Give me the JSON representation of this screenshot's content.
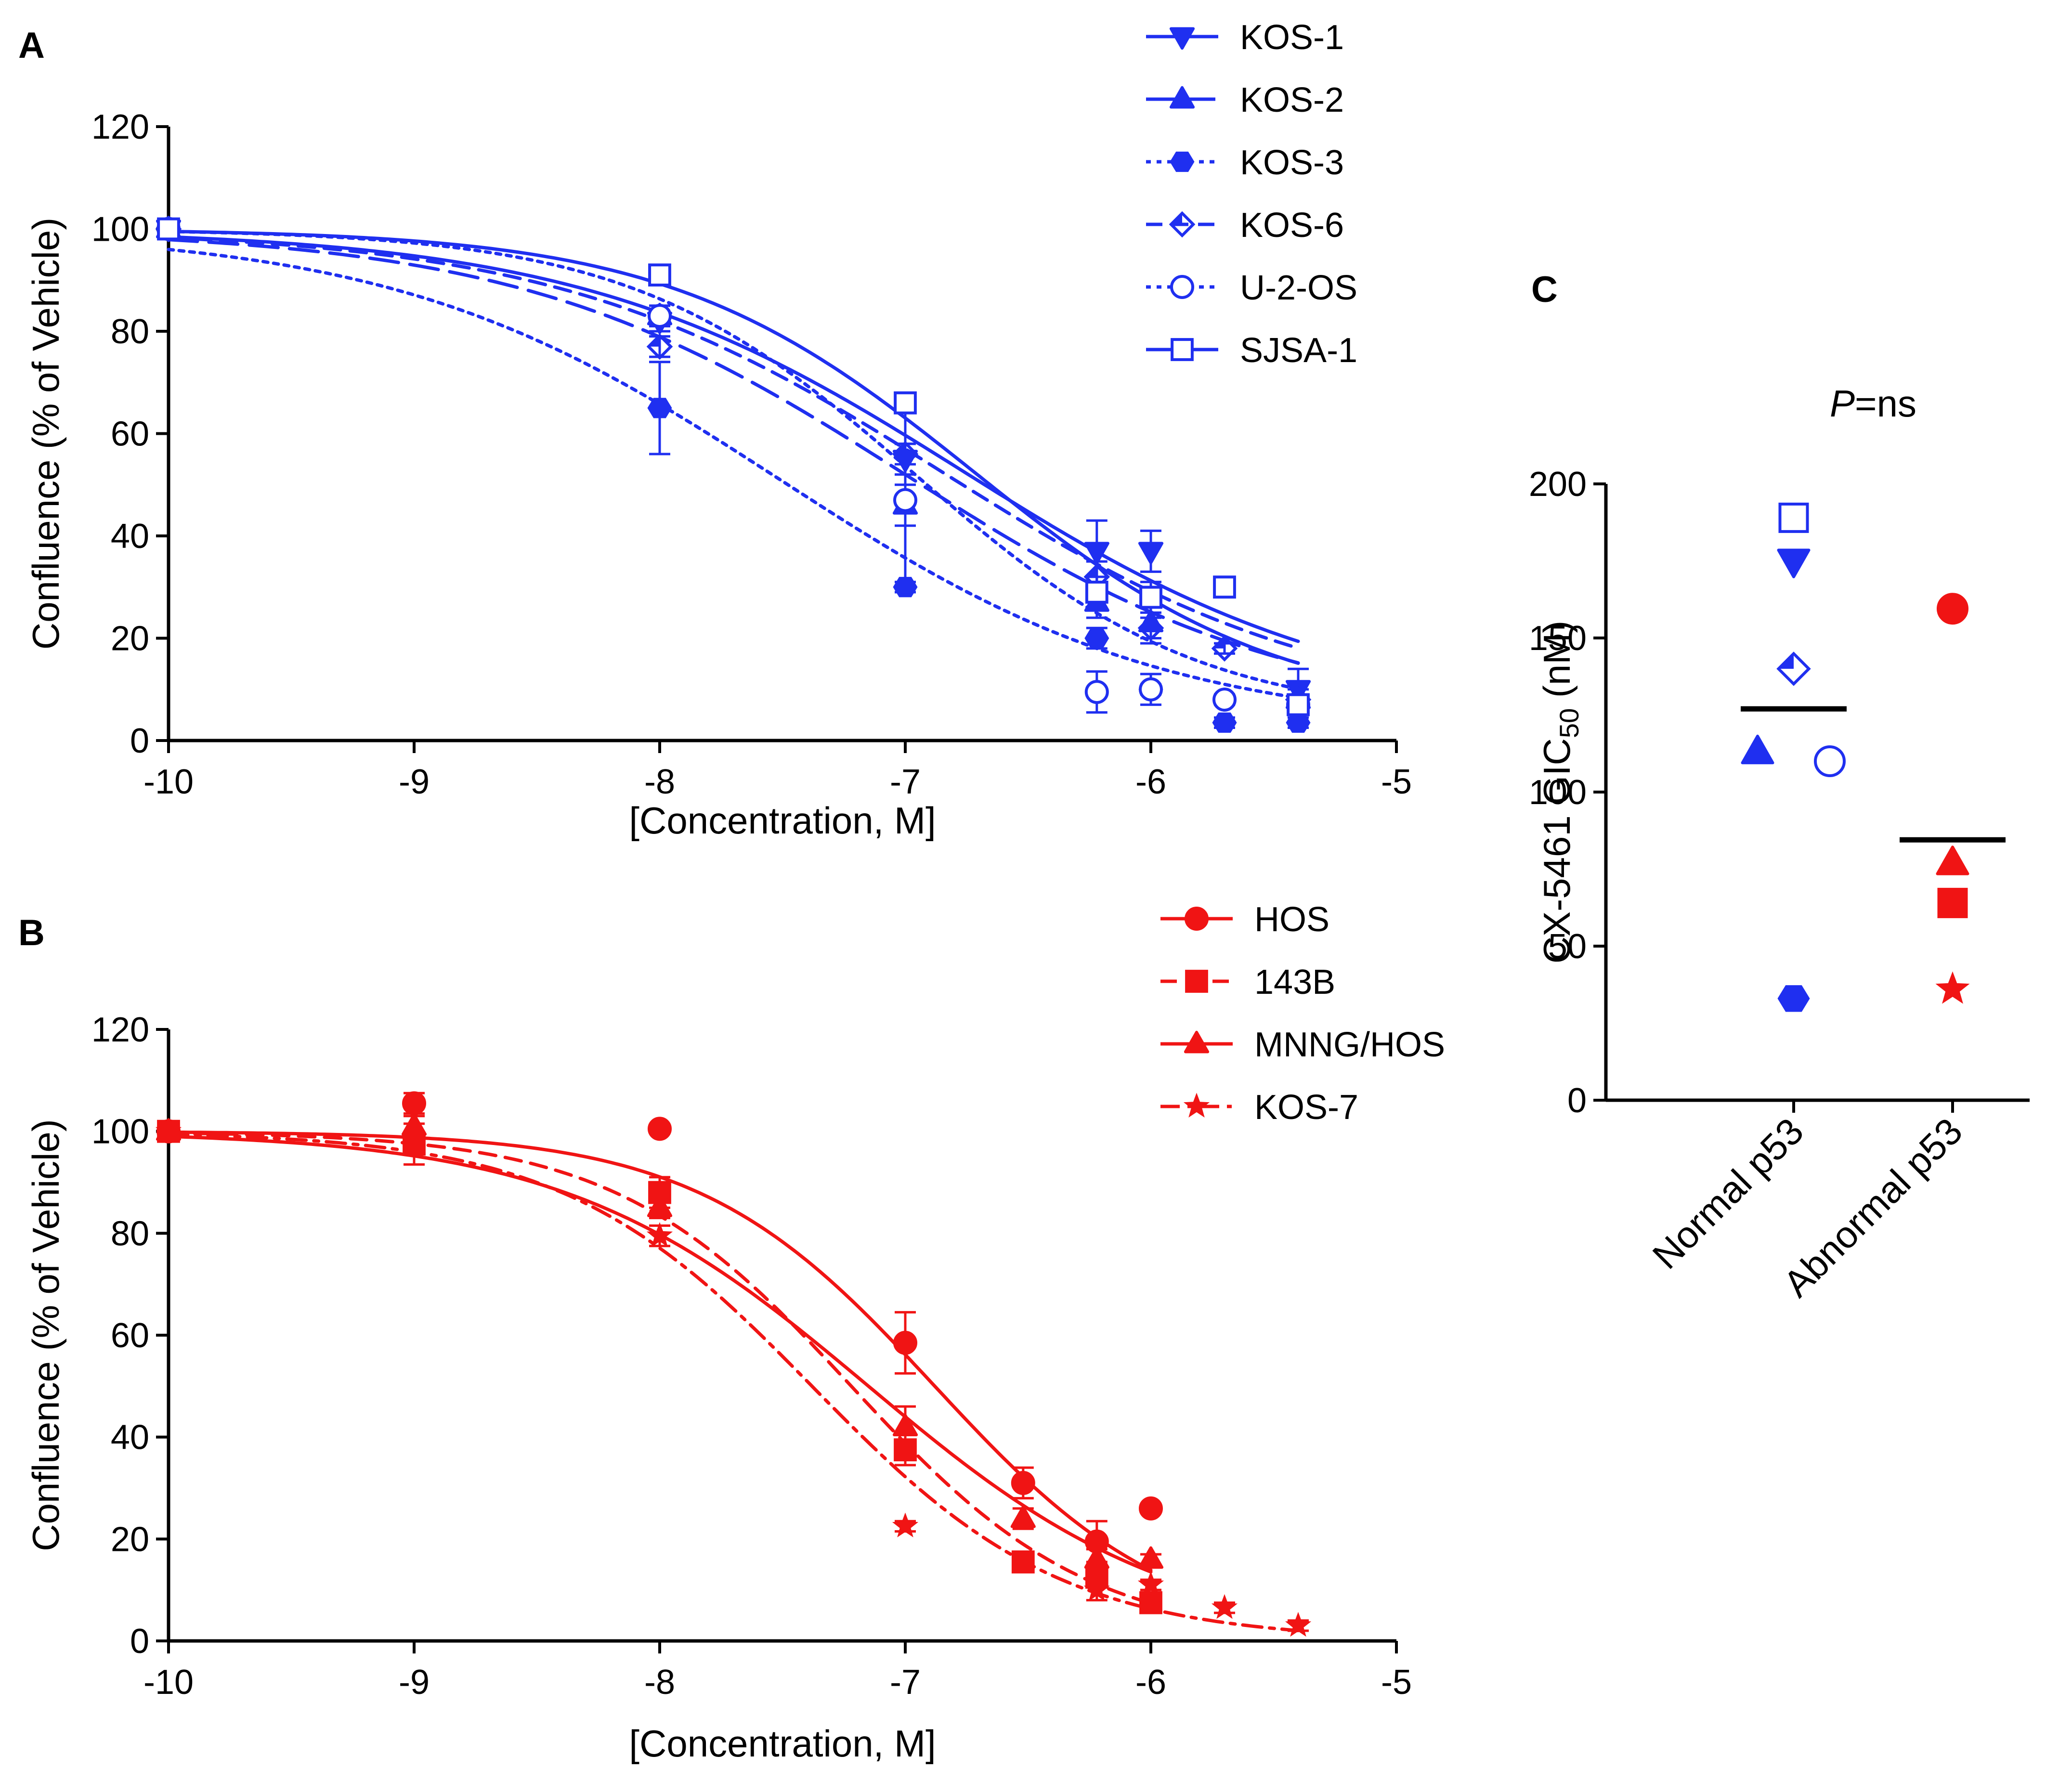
{
  "figure": {
    "panels": [
      {
        "letter": "A"
      },
      {
        "letter": "B"
      },
      {
        "letter": "C"
      }
    ]
  },
  "colors": {
    "blue": "#1f2ff0",
    "red": "#f01414",
    "black": "#000000"
  },
  "chart_data": [
    {
      "panel": "A",
      "type": "line",
      "xlabel": "[Concentration, M]",
      "ylabel": "Confluence (% of Vehicle)",
      "xlim": [
        -10,
        -5
      ],
      "ylim": [
        0,
        120
      ],
      "xticks": [
        -10,
        -9,
        -8,
        -7,
        -6,
        -5
      ],
      "yticks": [
        0,
        20,
        40,
        60,
        80,
        100,
        120
      ],
      "x_tick_labels": [
        "-10",
        "-9",
        "-8",
        "-7",
        "-6",
        "-5"
      ],
      "y_tick_labels": [
        "0",
        "20",
        "40",
        "60",
        "80",
        "100",
        "120"
      ],
      "legend_position": "top-right",
      "series": [
        {
          "name": "KOS-1",
          "marker": "triangle-down",
          "filled": true,
          "dash": "solid",
          "x": [
            -10,
            -8,
            -7,
            -6.22,
            -6,
            -5.4
          ],
          "y": [
            100,
            82,
            55,
            37,
            37,
            10
          ],
          "err": [
            0,
            2,
            3,
            6,
            4,
            4
          ],
          "fit": {
            "top": 100,
            "bottom": 5,
            "logic50": -6.76,
            "hill": 0.55
          }
        },
        {
          "name": "KOS-2",
          "marker": "triangle-up",
          "filled": true,
          "dash": "longdash",
          "x": [
            -10,
            -8,
            -7,
            -6.22,
            -6,
            -5.4
          ],
          "y": [
            100,
            83,
            46,
            27,
            23,
            8
          ],
          "err": [
            0,
            2,
            4,
            3,
            4,
            2
          ],
          "fit": {
            "top": 100,
            "bottom": 4,
            "logic50": -7.0,
            "hill": 0.55
          }
        },
        {
          "name": "KOS-3",
          "marker": "hexagon",
          "filled": true,
          "dash": "dotted",
          "x": [
            -10,
            -8,
            -7,
            -6.22,
            -6,
            -5.7,
            -5.4
          ],
          "y": [
            100,
            65,
            30,
            20,
            10,
            3.5,
            3.5
          ],
          "err": [
            0,
            9,
            1,
            2,
            1,
            1,
            1
          ],
          "fit": {
            "top": 100,
            "bottom": 2,
            "logic50": -7.51,
            "hill": 0.55
          }
        },
        {
          "name": "KOS-6",
          "marker": "diamond",
          "filled": "half",
          "dash": "dash",
          "x": [
            -10,
            -8,
            -7,
            -6.22,
            -6,
            -5.7,
            -5.4
          ],
          "y": [
            100,
            77,
            56,
            32,
            22,
            18,
            8
          ],
          "err": [
            0,
            2,
            2,
            3,
            2,
            1,
            1
          ],
          "fit": {
            "top": 100,
            "bottom": 5,
            "logic50": -6.85,
            "hill": 0.55
          }
        },
        {
          "name": "U-2-OS",
          "marker": "circle",
          "filled": false,
          "dash": "dotted",
          "x": [
            -10,
            -8,
            -7,
            -6.22,
            -6,
            -5.7,
            -5.4
          ],
          "y": [
            100,
            83,
            47,
            9.5,
            10,
            8,
            7
          ],
          "err": [
            0,
            2,
            18,
            4,
            3,
            1,
            1
          ],
          "fit": {
            "top": 100,
            "bottom": 4,
            "logic50": -6.96,
            "hill": 0.75
          }
        },
        {
          "name": "SJSA-1",
          "marker": "square",
          "filled": false,
          "dash": "solid",
          "x": [
            -10,
            -8,
            -7,
            -6.22,
            -6,
            -5.7,
            -5.4
          ],
          "y": [
            100,
            91,
            66,
            29,
            28,
            30,
            7
          ],
          "err": [
            0,
            1,
            2,
            3,
            3,
            1,
            1
          ],
          "fit": {
            "top": 100,
            "bottom": 5,
            "logic50": -6.72,
            "hill": 0.7
          }
        }
      ]
    },
    {
      "panel": "B",
      "type": "line",
      "xlabel": "[Concentration, M]",
      "ylabel": "Confluence (% of Vehicle)",
      "xlim": [
        -10,
        -5
      ],
      "ylim": [
        0,
        120
      ],
      "xticks": [
        -10,
        -9,
        -8,
        -7,
        -6,
        -5
      ],
      "yticks": [
        0,
        20,
        40,
        60,
        80,
        100,
        120
      ],
      "x_tick_labels": [
        "-10",
        "-9",
        "-8",
        "-7",
        "-6",
        "-5"
      ],
      "y_tick_labels": [
        "0",
        "20",
        "40",
        "60",
        "80",
        "100",
        "120"
      ],
      "legend_position": "top-right",
      "series": [
        {
          "name": "HOS",
          "marker": "circle",
          "filled": true,
          "dash": "solid",
          "x": [
            -10,
            -9,
            -8,
            -7,
            -6.52,
            -6.22,
            -6
          ],
          "y": [
            100,
            105.5,
            100.5,
            58.5,
            31,
            19.5,
            26
          ],
          "err": [
            0,
            2,
            0,
            6,
            3,
            4,
            0
          ],
          "fit": {
            "top": 100,
            "bottom": 0,
            "logic50": -6.88,
            "hill": 0.9
          }
        },
        {
          "name": "143B",
          "marker": "square",
          "filled": true,
          "dash": "dash",
          "x": [
            -10,
            -9,
            -8,
            -7,
            -6.52,
            -6.22,
            -6
          ],
          "y": [
            100,
            97.5,
            88,
            37.5,
            15.5,
            12.5,
            7.5
          ],
          "err": [
            0,
            4,
            3,
            3,
            1,
            2,
            1
          ],
          "fit": {
            "top": 100,
            "bottom": 0,
            "logic50": -7.22,
            "hill": 0.9
          }
        },
        {
          "name": "MNNG/HOS",
          "marker": "triangle-up",
          "filled": true,
          "dash": "solid",
          "x": [
            -10,
            -9,
            -8,
            -7,
            -6.52,
            -6.22,
            -6
          ],
          "y": [
            100,
            101,
            85,
            42,
            24,
            16,
            16
          ],
          "err": [
            0,
            2,
            2,
            4,
            2,
            2,
            1
          ],
          "fit": {
            "top": 100,
            "bottom": 0,
            "logic50": -7.15,
            "hill": 0.7
          }
        },
        {
          "name": "KOS-7",
          "marker": "star",
          "filled": true,
          "dash": "dashdot",
          "x": [
            -10,
            -9,
            -8,
            -7,
            -6.22,
            -6,
            -5.7,
            -5.4
          ],
          "y": [
            100,
            98,
            79.5,
            22.5,
            10,
            11,
            6.5,
            3
          ],
          "err": [
            0,
            2,
            2,
            1,
            2,
            1,
            1,
            1
          ],
          "fit": {
            "top": 100,
            "bottom": 0,
            "logic50": -7.38,
            "hill": 0.85
          }
        }
      ]
    },
    {
      "panel": "C",
      "type": "scatter",
      "title": "P=ns",
      "title_parts": {
        "italic": "P",
        "rest": "=ns"
      },
      "ylabel_parts": {
        "main": "CX-5461 GIC",
        "sub": "50",
        "unit": " (nM)"
      },
      "ylim": [
        0,
        200
      ],
      "yticks": [
        0,
        50,
        100,
        150,
        200
      ],
      "y_tick_labels": [
        "0",
        "50",
        "100",
        "150",
        "200"
      ],
      "categories": [
        "Normal p53",
        "Abnormal p53"
      ],
      "groups": [
        {
          "name": "Normal p53",
          "color": "blue",
          "mean": 127,
          "points": [
            {
              "cell_line": "SJSA-1",
              "marker": "square",
              "filled": false,
              "value": 189,
              "jitter": 0
            },
            {
              "cell_line": "KOS-1",
              "marker": "triangle-down",
              "filled": true,
              "value": 175,
              "jitter": 0
            },
            {
              "cell_line": "KOS-6",
              "marker": "diamond",
              "filled": "half",
              "value": 140,
              "jitter": 0
            },
            {
              "cell_line": "KOS-2",
              "marker": "triangle-up",
              "filled": true,
              "value": 113,
              "jitter": -0.25
            },
            {
              "cell_line": "U-2-OS",
              "marker": "circle",
              "filled": false,
              "value": 110,
              "jitter": 0.25
            },
            {
              "cell_line": "KOS-3",
              "marker": "hexagon",
              "filled": true,
              "value": 33,
              "jitter": 0
            }
          ]
        },
        {
          "name": "Abnormal p53",
          "color": "red",
          "mean": 84.5,
          "points": [
            {
              "cell_line": "HOS",
              "marker": "circle",
              "filled": true,
              "value": 159.5,
              "jitter": 0
            },
            {
              "cell_line": "MNNG/HOS",
              "marker": "triangle-up",
              "filled": true,
              "value": 77,
              "jitter": 0
            },
            {
              "cell_line": "143B",
              "marker": "square",
              "filled": true,
              "value": 64,
              "jitter": 0
            },
            {
              "cell_line": "KOS-7",
              "marker": "star",
              "filled": true,
              "value": 36,
              "jitter": 0
            }
          ]
        }
      ]
    }
  ]
}
